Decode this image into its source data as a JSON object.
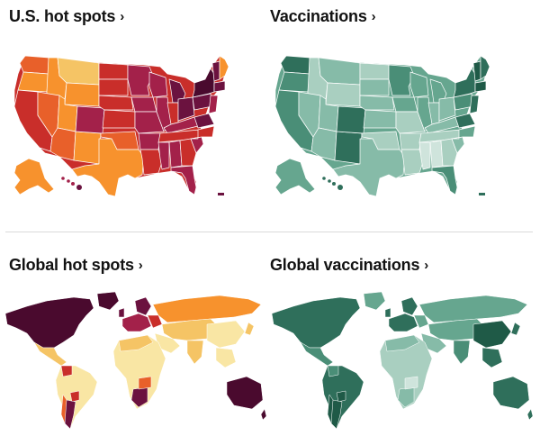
{
  "panels": {
    "us_hotspots": {
      "title": "U.S. hot spots",
      "chevron": "›"
    },
    "us_vaccinations": {
      "title": "Vaccinations",
      "chevron": "›"
    },
    "global_hotspots": {
      "title": "Global hot spots",
      "chevron": "›"
    },
    "global_vaccinations": {
      "title": "Global vaccinations",
      "chevron": "›"
    }
  },
  "colors": {
    "hotspot_scale": [
      "#f9e6a4",
      "#f5c465",
      "#f7922d",
      "#e8602a",
      "#c92e2a",
      "#a3214a",
      "#6b123f",
      "#4a0a2e"
    ],
    "vaccination_scale": [
      "#cfe4dc",
      "#a9cfc0",
      "#86bba8",
      "#66a68f",
      "#4a8e77",
      "#2f6f5b",
      "#1f5a47"
    ]
  },
  "icons": {
    "chevron": "chevron-right-icon"
  }
}
